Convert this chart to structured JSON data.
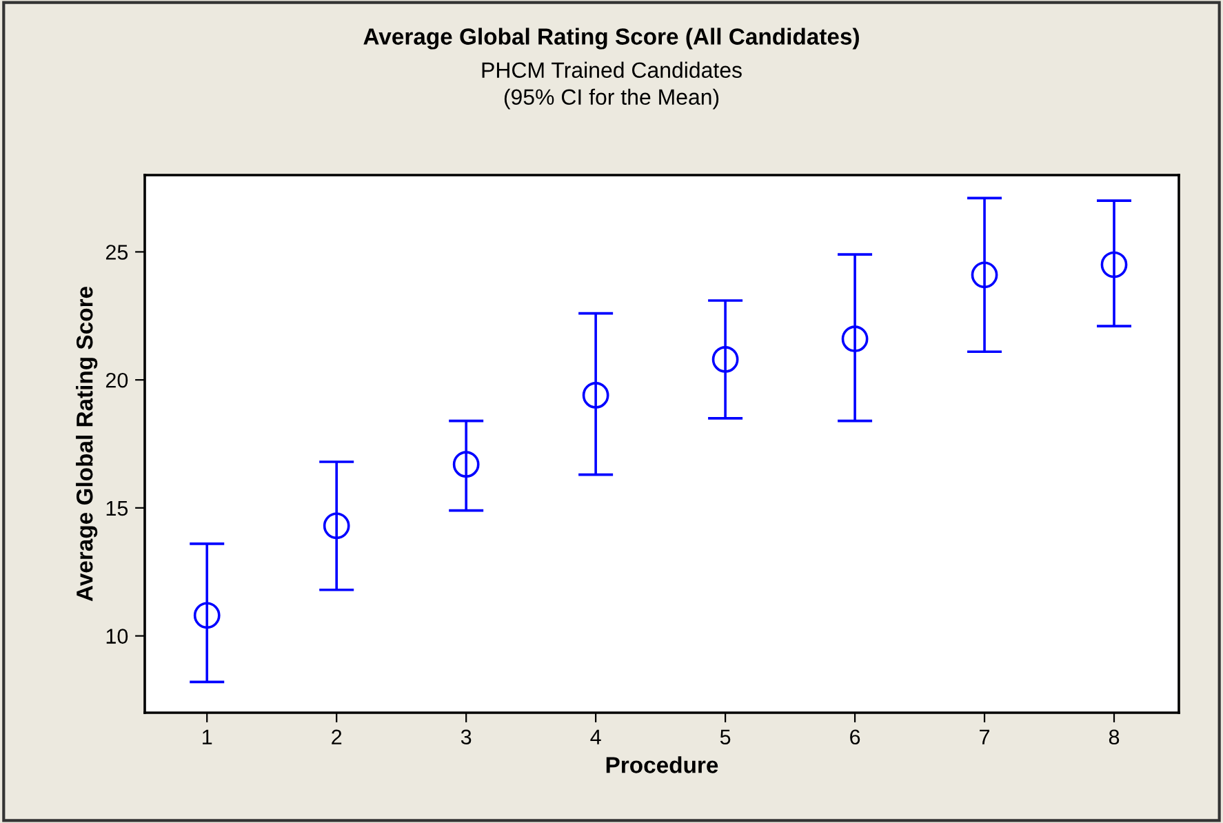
{
  "chart_data": {
    "type": "scatter",
    "title": "Average Global Rating Score (All Candidates)",
    "subtitle": "PHCM Trained Candidates\n(95% CI for the Mean)",
    "xlabel": "Procedure",
    "ylabel": "Average Global Rating Score",
    "categories": [
      "1",
      "2",
      "3",
      "4",
      "5",
      "6",
      "7",
      "8"
    ],
    "values": [
      10.8,
      14.3,
      16.7,
      19.4,
      20.8,
      21.6,
      24.1,
      24.5
    ],
    "errors": [
      [
        8.2,
        13.6
      ],
      [
        11.8,
        16.8
      ],
      [
        14.9,
        18.4
      ],
      [
        16.3,
        22.6
      ],
      [
        18.5,
        23.1
      ],
      [
        18.4,
        24.9
      ],
      [
        21.1,
        27.1
      ],
      [
        22.1,
        27.0
      ]
    ],
    "color": "#0000ff",
    "marker": "circle",
    "ylim": [
      7,
      28
    ],
    "yticks": [
      10,
      15,
      20,
      25
    ],
    "grid": false,
    "legend": false
  }
}
